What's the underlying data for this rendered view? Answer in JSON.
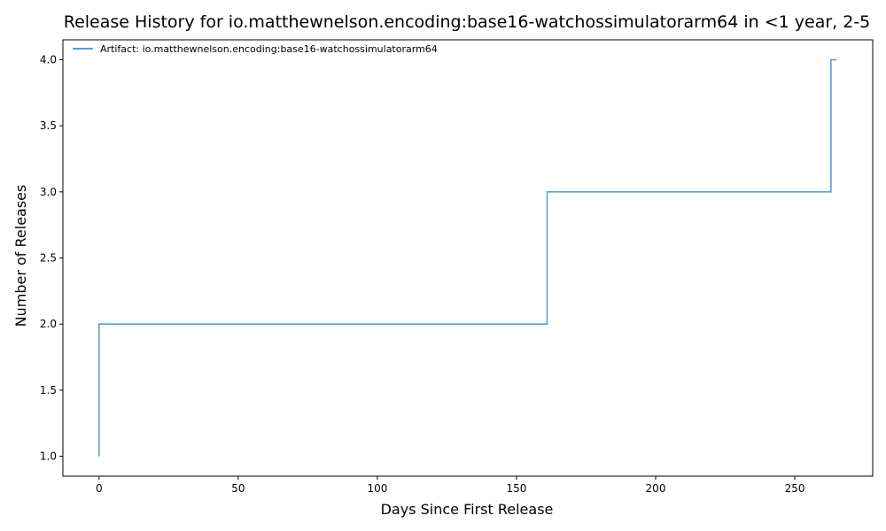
{
  "chart_data": {
    "type": "line",
    "title": "Release History for io.matthewnelson.encoding:base16-watchossimulatorarm64 in <1 year, 2-5",
    "xlabel": "Days Since First Release",
    "ylabel": "Number of Releases",
    "xlim": [
      -13,
      278
    ],
    "ylim": [
      0.85,
      4.15
    ],
    "x_ticks": [
      0,
      50,
      100,
      150,
      200,
      250
    ],
    "y_ticks": [
      1.0,
      1.5,
      2.0,
      2.5,
      3.0,
      3.5,
      4.0
    ],
    "x_tick_labels": [
      "0",
      "50",
      "100",
      "150",
      "200",
      "250"
    ],
    "y_tick_labels": [
      "1.0",
      "1.5",
      "2.0",
      "2.5",
      "3.0",
      "3.5",
      "4.0"
    ],
    "grid": false,
    "legend_position": "top-left",
    "step": "post",
    "series": [
      {
        "name": "Artifact: io.matthewnelson.encoding:base16-watchossimulatorarm64",
        "color": "#5b9fd1",
        "x": [
          0,
          0,
          161,
          263,
          265
        ],
        "y": [
          1,
          2,
          3,
          4,
          4
        ]
      }
    ]
  }
}
